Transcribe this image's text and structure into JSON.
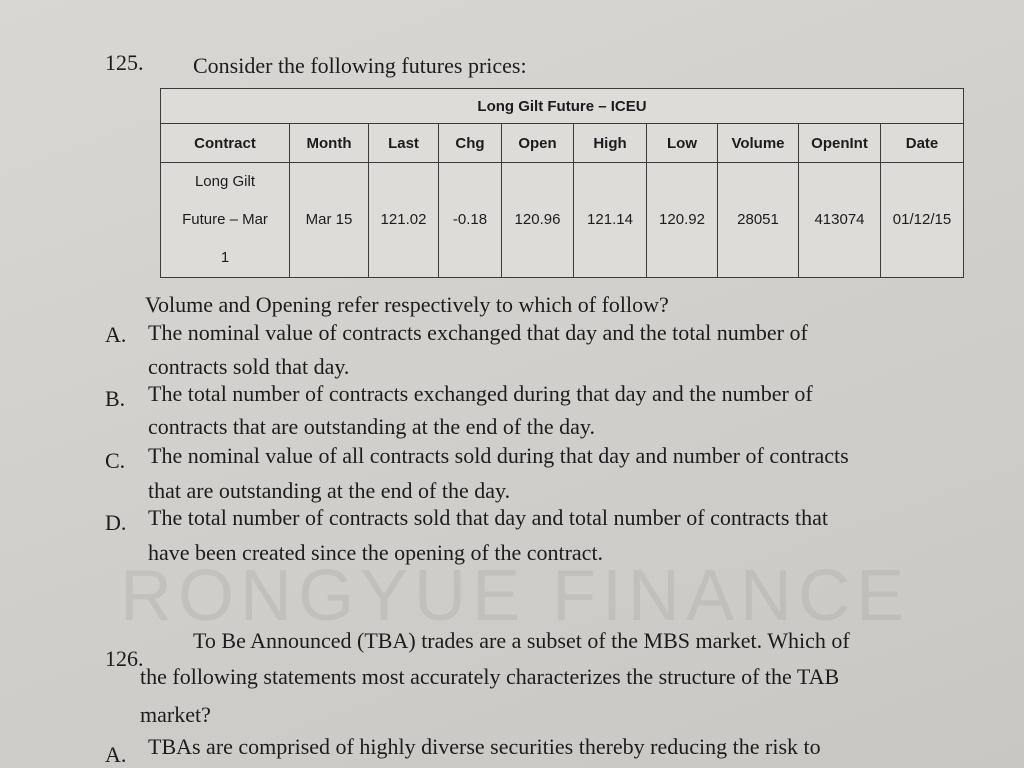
{
  "watermark": "RONGYUE FINANCE",
  "q125": {
    "number": "125.",
    "prompt": "Consider the following futures prices:",
    "table": {
      "title": "Long Gilt Future – ICEU",
      "headers": [
        "Contract",
        "Month",
        "Last",
        "Chg",
        "Open",
        "High",
        "Low",
        "Volume",
        "OpenInt",
        "Date"
      ],
      "contract_lines": [
        "Long Gilt",
        "Future – Mar",
        "1"
      ],
      "row": [
        "Mar 15",
        "121.02",
        "-0.18",
        "120.96",
        "121.14",
        "120.92",
        "28051",
        "413074",
        "01/12/15"
      ]
    },
    "question": "Volume and Opening refer respectively to which of follow?",
    "options": [
      {
        "letter": "A.",
        "lines": [
          "The nominal value of contracts exchanged that day and the total number of",
          "contracts sold that day."
        ]
      },
      {
        "letter": "B.",
        "lines": [
          "The total number of contracts exchanged during that day and the number of",
          "contracts that are outstanding at the end of the day."
        ]
      },
      {
        "letter": "C.",
        "lines": [
          "The nominal value of all contracts sold during that day and number of contracts",
          "that are outstanding at the end of the day."
        ]
      },
      {
        "letter": "D.",
        "lines": [
          "The total number of contracts sold that day and total number of contracts that",
          "have been created since the opening of the contract."
        ]
      }
    ]
  },
  "q126": {
    "number": "126.",
    "lines": [
      "To Be Announced (TBA) trades are a subset of the MBS market. Which of",
      "the following statements most accurately characterizes the structure of the TAB",
      "market?"
    ],
    "options": [
      {
        "letter": "A.",
        "lines": [
          "TBAs are comprised of highly diverse securities thereby reducing the risk to"
        ]
      }
    ]
  }
}
